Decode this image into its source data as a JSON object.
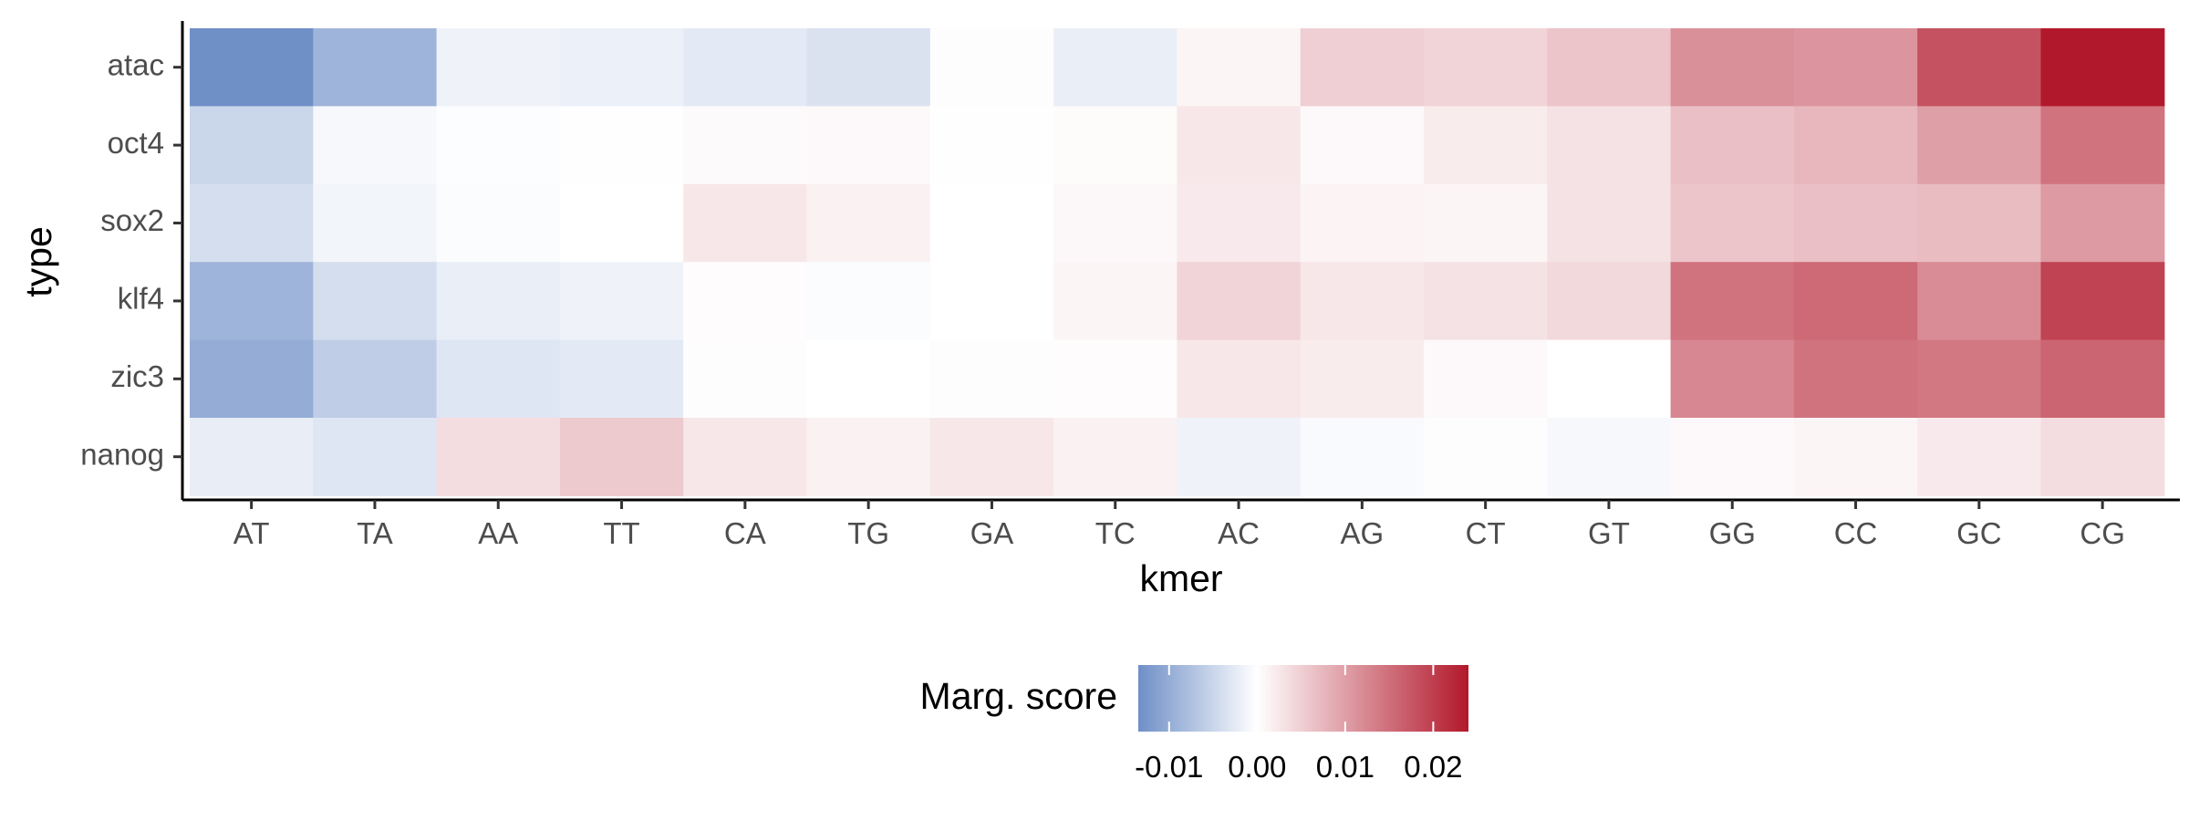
{
  "chart_data": {
    "type": "heatmap",
    "title": "",
    "xlabel": "kmer",
    "ylabel": "type",
    "x_categories": [
      "AT",
      "TA",
      "AA",
      "TT",
      "CA",
      "TG",
      "GA",
      "TC",
      "AC",
      "AG",
      "CT",
      "GT",
      "GG",
      "CC",
      "GC",
      "CG"
    ],
    "y_categories": [
      "atac",
      "oct4",
      "sox2",
      "klf4",
      "zic3",
      "nanog"
    ],
    "values": [
      [
        -0.0135,
        -0.009,
        -0.0015,
        -0.0018,
        -0.0025,
        -0.0035,
        0.0002,
        -0.002,
        0.001,
        0.005,
        0.0045,
        0.006,
        0.0115,
        0.011,
        0.018,
        0.024
      ],
      [
        -0.005,
        -0.0008,
        -0.0003,
        0.0001,
        0.0005,
        0.0006,
        0.0001,
        0.0004,
        0.0025,
        0.0006,
        0.002,
        0.003,
        0.0065,
        0.0075,
        0.01,
        0.0145
      ],
      [
        -0.004,
        -0.0012,
        -0.0004,
        0.0,
        0.0025,
        0.0015,
        0.0,
        0.0008,
        0.0022,
        0.0012,
        0.001,
        0.003,
        0.006,
        0.0065,
        0.007,
        0.0105
      ],
      [
        -0.009,
        -0.004,
        -0.002,
        -0.0015,
        0.0003,
        -0.0004,
        0.0,
        0.001,
        0.0045,
        0.0025,
        0.003,
        0.004,
        0.0145,
        0.0155,
        0.012,
        0.0195
      ],
      [
        -0.01,
        -0.006,
        -0.003,
        -0.0025,
        0.0002,
        0.0,
        -0.0002,
        0.0003,
        0.0025,
        0.002,
        0.0006,
        0.0,
        0.0125,
        0.0145,
        0.014,
        0.016
      ],
      [
        -0.0022,
        -0.003,
        0.0035,
        0.0055,
        0.0025,
        0.0015,
        0.0025,
        0.0015,
        -0.0015,
        -0.0006,
        0.0002,
        -0.0008,
        0.0006,
        0.001,
        0.0022,
        0.0035
      ]
    ],
    "color_scale": {
      "title": "Marg. score",
      "domain": [
        -0.0135,
        0.024
      ],
      "midpoint": 0,
      "low_color": "#6f8fc7",
      "mid_color": "#ffffff",
      "high_color": "#b2182b",
      "ticks": [
        -0.01,
        0.0,
        0.01,
        0.02
      ],
      "tick_labels": [
        "-0.01",
        "0.00",
        "0.01",
        "0.02"
      ]
    },
    "legend_position": "bottom",
    "grid": false
  }
}
